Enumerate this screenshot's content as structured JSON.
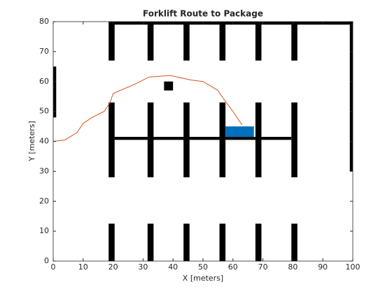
{
  "chart_data": {
    "type": "occupancy-map",
    "title": "Forklift Route to Package",
    "xlabel": "X [meters]",
    "ylabel": "Y [meters]",
    "xlim": [
      0,
      100
    ],
    "ylim": [
      0,
      80
    ],
    "xticks": [
      0,
      10,
      20,
      30,
      40,
      50,
      60,
      70,
      80,
      90,
      100
    ],
    "yticks": [
      0,
      10,
      20,
      30,
      40,
      50,
      60,
      70,
      80
    ],
    "obstacle_color": "#000000",
    "obstacles": [
      {
        "x": [
          0,
          1
        ],
        "y": [
          48,
          65
        ]
      },
      {
        "x": [
          99,
          100
        ],
        "y": [
          30,
          80
        ]
      },
      {
        "x": [
          20,
          100
        ],
        "y": [
          79,
          80
        ]
      },
      {
        "x": [
          18.5,
          20.5
        ],
        "y": [
          0,
          12.5
        ]
      },
      {
        "x": [
          31.5,
          33.5
        ],
        "y": [
          0,
          12.5
        ]
      },
      {
        "x": [
          43.5,
          45.5
        ],
        "y": [
          0,
          12.5
        ]
      },
      {
        "x": [
          55.5,
          57.5
        ],
        "y": [
          0,
          12.5
        ]
      },
      {
        "x": [
          67.5,
          69.5
        ],
        "y": [
          0,
          12.5
        ]
      },
      {
        "x": [
          79.5,
          81.5
        ],
        "y": [
          0,
          12.5
        ]
      },
      {
        "x": [
          18.5,
          20.5
        ],
        "y": [
          28,
          53
        ]
      },
      {
        "x": [
          31.5,
          33.5
        ],
        "y": [
          28,
          53
        ]
      },
      {
        "x": [
          43.5,
          45.5
        ],
        "y": [
          28,
          53
        ]
      },
      {
        "x": [
          55.5,
          57.5
        ],
        "y": [
          28,
          53
        ]
      },
      {
        "x": [
          67.5,
          69.5
        ],
        "y": [
          28,
          53
        ]
      },
      {
        "x": [
          79.5,
          81.5
        ],
        "y": [
          28,
          53
        ]
      },
      {
        "x": [
          18.5,
          20.5
        ],
        "y": [
          67,
          80
        ]
      },
      {
        "x": [
          31.5,
          33.5
        ],
        "y": [
          67,
          80
        ]
      },
      {
        "x": [
          43.5,
          45.5
        ],
        "y": [
          67,
          80
        ]
      },
      {
        "x": [
          55.5,
          57.5
        ],
        "y": [
          67,
          80
        ]
      },
      {
        "x": [
          67.5,
          69.5
        ],
        "y": [
          67,
          80
        ]
      },
      {
        "x": [
          79.5,
          81.5
        ],
        "y": [
          67,
          80
        ]
      },
      {
        "x": [
          20.5,
          79.5
        ],
        "y": [
          40.5,
          41.5
        ]
      },
      {
        "x": [
          37,
          40
        ],
        "y": [
          57,
          60
        ]
      }
    ],
    "package": {
      "x": [
        57.5,
        67
      ],
      "y": [
        41.5,
        45
      ],
      "color": "#0072bd"
    },
    "series": [
      {
        "color": "#d95319",
        "x": [
          0,
          4,
          8,
          10,
          13,
          17,
          19,
          20,
          27,
          32,
          39,
          46,
          50,
          55,
          57,
          60,
          63
        ],
        "values": [
          40,
          40.5,
          43,
          46,
          48,
          50,
          53,
          56,
          59,
          61.5,
          62,
          60.5,
          60,
          57,
          54,
          50,
          45.5
        ]
      }
    ]
  }
}
